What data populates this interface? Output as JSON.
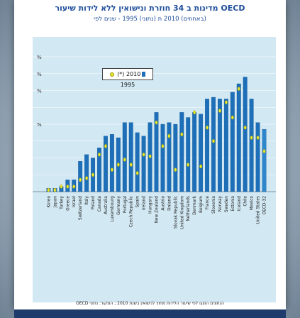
{
  "header": {
    "title": "OECD מדינות ב 34 חוזרת ונישואין ללא לידות שיעור",
    "subtitle": "(באחוזים) 2010 ת (נתוני) 1995 - שנים לפי",
    "note": "הנתונים הוצגו לפי שיעור הלידות מחוץ לנישואין בשנת 2010 ; המקור: נתוני OECD"
  },
  "legend": {
    "item_2010": "2010 (*)",
    "item_1995": "1995"
  },
  "colors": {
    "bar": "#1c6fb8",
    "bar_highlight": "#2e86cc",
    "marker": "#e9e42a",
    "plot_background": "#d2e8f3",
    "title": "#1f4e9a"
  },
  "chart_data": {
    "type": "bar",
    "title": "OECD מדינות ב 34 חוזרת ונישואין ללא לידות שיעור",
    "ylim": [
      0,
      80
    ],
    "yticks": [
      0,
      10,
      20,
      30,
      40,
      50,
      60,
      70,
      80
    ],
    "ytick_labels": [
      "",
      "",
      "",
      "",
      "%",
      "",
      "%",
      "%",
      "%"
    ],
    "grid": true,
    "legend_position": "top-left",
    "categories": [
      "Korea",
      "Japan",
      "Turkey",
      "Greece",
      "Israel",
      "Switzerland",
      "Italy",
      "Poland",
      "Canada",
      "Australia",
      "Luxembourg",
      "Germany",
      "Portugal",
      "Czech Republic",
      "Spain",
      "Ireland",
      "Hungary",
      "New Zealand",
      "Austria",
      "Finland",
      "Slovak Republic",
      "United Kingdom",
      "Netherlands",
      "Denmark",
      "Belgium",
      "France",
      "Slovenia",
      "Norway",
      "Sweden",
      "Estonia",
      "Iceland",
      "Chile",
      "Mexico",
      "United States",
      "OECD-32"
    ],
    "series": [
      {
        "name": "2010 (*)",
        "values": [
          2,
          2,
          3,
          7,
          7,
          18,
          22,
          20,
          26,
          33,
          34,
          32,
          41,
          41,
          35,
          33,
          41,
          47,
          40,
          41,
          40,
          47,
          44,
          47,
          46,
          55,
          56,
          55,
          55,
          59,
          64,
          68,
          55,
          41,
          37
        ]
      },
      {
        "name": "1995",
        "values": [
          1,
          1,
          3,
          3,
          3,
          7,
          8,
          10,
          22,
          27,
          13,
          16,
          19,
          16,
          11,
          22,
          21,
          41,
          27,
          33,
          13,
          34,
          16,
          47,
          15,
          38,
          30,
          48,
          53,
          44,
          61,
          38,
          32,
          32,
          24
        ]
      }
    ]
  }
}
